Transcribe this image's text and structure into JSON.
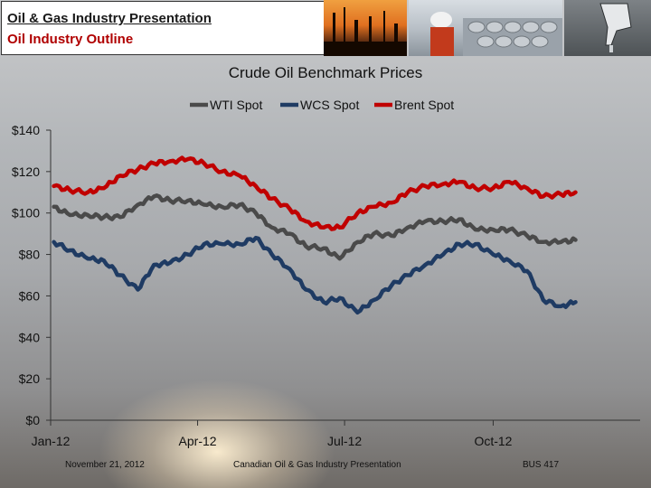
{
  "header": {
    "title": "Oil & Gas Industry Presentation",
    "subtitle": "Oil Industry Outline"
  },
  "photos": [
    {
      "icon": "refinery-sunset-photo-icon"
    },
    {
      "icon": "oil-worker-barrels-photo-icon"
    },
    {
      "icon": "fuel-nozzle-photo-icon"
    }
  ],
  "footer": {
    "date": "November 21, 2012",
    "presentation": "Canadian Oil & Gas Industry Presentation",
    "course": "BUS 417"
  },
  "colors": {
    "wti": "#4a4a4a",
    "wcs": "#1f3b63",
    "brent": "#c00000",
    "title_bg": "#ffffff",
    "subtitle_text": "#b00000"
  },
  "chart_data": {
    "type": "line",
    "title": "Crude Oil Benchmark Prices",
    "ylim": [
      0,
      140
    ],
    "yticks": [
      {
        "value": 0,
        "label": "$0"
      },
      {
        "value": 20,
        "label": "$20"
      },
      {
        "value": 40,
        "label": "$40"
      },
      {
        "value": 60,
        "label": "$60"
      },
      {
        "value": 80,
        "label": "$80"
      },
      {
        "value": 100,
        "label": "$100"
      },
      {
        "value": 120,
        "label": "$120"
      },
      {
        "value": 140,
        "label": "$140"
      }
    ],
    "xlim": [
      "2012-01-01",
      "2012-12-31"
    ],
    "xticks": [
      {
        "date": "2012-01-01",
        "label": "Jan-12"
      },
      {
        "date": "2012-04-01",
        "label": "Apr-12"
      },
      {
        "date": "2012-07-01",
        "label": "Jul-12"
      },
      {
        "date": "2012-10-01",
        "label": "Oct-12"
      }
    ],
    "legend_position": "top",
    "grid": false,
    "series": [
      {
        "name": "WTI Spot",
        "color": "#4a4a4a",
        "points": [
          [
            "2012-01-03",
            103
          ],
          [
            "2012-01-13",
            99
          ],
          [
            "2012-01-24",
            99
          ],
          [
            "2012-02-03",
            98
          ],
          [
            "2012-02-13",
            98
          ],
          [
            "2012-02-24",
            104
          ],
          [
            "2012-03-05",
            108
          ],
          [
            "2012-03-15",
            106
          ],
          [
            "2012-03-26",
            106
          ],
          [
            "2012-04-05",
            104
          ],
          [
            "2012-04-16",
            103
          ],
          [
            "2012-04-27",
            104
          ],
          [
            "2012-05-07",
            100
          ],
          [
            "2012-05-17",
            93
          ],
          [
            "2012-05-28",
            90
          ],
          [
            "2012-06-07",
            84
          ],
          [
            "2012-06-18",
            83
          ],
          [
            "2012-06-28",
            78
          ],
          [
            "2012-07-09",
            86
          ],
          [
            "2012-07-19",
            90
          ],
          [
            "2012-07-30",
            89
          ],
          [
            "2012-08-09",
            93
          ],
          [
            "2012-08-20",
            96
          ],
          [
            "2012-08-31",
            96
          ],
          [
            "2012-09-10",
            97
          ],
          [
            "2012-09-20",
            92
          ],
          [
            "2012-10-01",
            92
          ],
          [
            "2012-10-11",
            92
          ],
          [
            "2012-10-22",
            89
          ],
          [
            "2012-11-01",
            86
          ],
          [
            "2012-11-12",
            86
          ],
          [
            "2012-11-21",
            87
          ]
        ]
      },
      {
        "name": "WCS Spot",
        "color": "#1f3b63",
        "points": [
          [
            "2012-01-03",
            86
          ],
          [
            "2012-01-13",
            82
          ],
          [
            "2012-01-24",
            78
          ],
          [
            "2012-02-03",
            77
          ],
          [
            "2012-02-13",
            70
          ],
          [
            "2012-02-24",
            63
          ],
          [
            "2012-03-05",
            75
          ],
          [
            "2012-03-15",
            76
          ],
          [
            "2012-03-26",
            80
          ],
          [
            "2012-04-05",
            85
          ],
          [
            "2012-04-16",
            85
          ],
          [
            "2012-04-27",
            85
          ],
          [
            "2012-05-07",
            88
          ],
          [
            "2012-05-17",
            80
          ],
          [
            "2012-05-28",
            73
          ],
          [
            "2012-06-07",
            63
          ],
          [
            "2012-06-18",
            57
          ],
          [
            "2012-06-28",
            59
          ],
          [
            "2012-07-09",
            52
          ],
          [
            "2012-07-19",
            58
          ],
          [
            "2012-07-30",
            65
          ],
          [
            "2012-08-09",
            70
          ],
          [
            "2012-08-20",
            75
          ],
          [
            "2012-08-31",
            80
          ],
          [
            "2012-09-10",
            85
          ],
          [
            "2012-09-20",
            85
          ],
          [
            "2012-10-01",
            80
          ],
          [
            "2012-10-11",
            77
          ],
          [
            "2012-10-22",
            72
          ],
          [
            "2012-11-01",
            58
          ],
          [
            "2012-11-12",
            55
          ],
          [
            "2012-11-21",
            57
          ]
        ]
      },
      {
        "name": "Brent Spot",
        "color": "#c00000",
        "points": [
          [
            "2012-01-03",
            113
          ],
          [
            "2012-01-13",
            111
          ],
          [
            "2012-01-24",
            110
          ],
          [
            "2012-02-03",
            112
          ],
          [
            "2012-02-13",
            118
          ],
          [
            "2012-02-24",
            121
          ],
          [
            "2012-03-05",
            124
          ],
          [
            "2012-03-15",
            125
          ],
          [
            "2012-03-26",
            126
          ],
          [
            "2012-04-05",
            124
          ],
          [
            "2012-04-16",
            120
          ],
          [
            "2012-04-27",
            118
          ],
          [
            "2012-05-07",
            113
          ],
          [
            "2012-05-17",
            107
          ],
          [
            "2012-05-28",
            102
          ],
          [
            "2012-06-07",
            96
          ],
          [
            "2012-06-18",
            93
          ],
          [
            "2012-06-28",
            93
          ],
          [
            "2012-07-09",
            100
          ],
          [
            "2012-07-19",
            103
          ],
          [
            "2012-07-30",
            105
          ],
          [
            "2012-08-09",
            110
          ],
          [
            "2012-08-20",
            113
          ],
          [
            "2012-08-31",
            114
          ],
          [
            "2012-09-10",
            115
          ],
          [
            "2012-09-20",
            112
          ],
          [
            "2012-10-01",
            112
          ],
          [
            "2012-10-11",
            115
          ],
          [
            "2012-10-22",
            112
          ],
          [
            "2012-11-01",
            108
          ],
          [
            "2012-11-12",
            109
          ],
          [
            "2012-11-21",
            110
          ]
        ]
      }
    ]
  }
}
